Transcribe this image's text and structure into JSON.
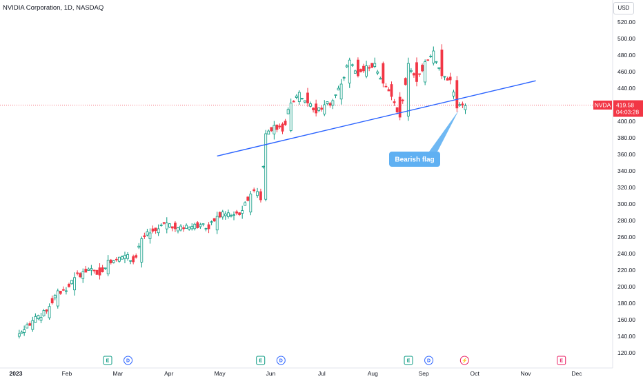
{
  "header": {
    "title": "NVIDIA Corporation, 1D, NASDAQ",
    "currency": "USD"
  },
  "price_label": {
    "symbol": "NVDA",
    "price": "419.58",
    "countdown": "04:03:28",
    "color": "#f23645"
  },
  "annotation": {
    "text": "Bearish flag",
    "color": "#5fb0f2"
  },
  "events": [
    {
      "letter": "E",
      "kind": "earnings",
      "color": "#089981"
    },
    {
      "letter": "D",
      "kind": "dividend",
      "color": "#2962ff"
    },
    {
      "letter": "E",
      "kind": "earnings",
      "color": "#089981"
    },
    {
      "letter": "D",
      "kind": "dividend",
      "color": "#2962ff"
    },
    {
      "letter": "E",
      "kind": "earnings",
      "color": "#089981"
    },
    {
      "letter": "D",
      "kind": "dividend",
      "color": "#2962ff"
    },
    {
      "letter": "⚡",
      "kind": "split",
      "color": "#e91e63"
    },
    {
      "letter": "E",
      "kind": "earnings-future",
      "color": "#e91e63"
    }
  ],
  "colors": {
    "up": "#089981",
    "down": "#f23645",
    "trendline": "#2962ff",
    "grid": "#ffffff"
  },
  "chart_data": {
    "type": "candlestick",
    "title": "NVIDIA Corporation, 1D, NASDAQ",
    "ylim": [
      100,
      525
    ],
    "y_ticks": [
      120,
      140,
      160,
      180,
      200,
      220,
      240,
      260,
      280,
      300,
      320,
      340,
      360,
      380,
      400,
      420,
      440,
      460,
      480,
      500,
      520
    ],
    "x_ticks": [
      "2023",
      "Feb",
      "Mar",
      "Apr",
      "May",
      "Jun",
      "Jul",
      "Aug",
      "Sep",
      "Oct",
      "Nov",
      "Dec"
    ],
    "x_tick_months": [
      0,
      1,
      2,
      3,
      4,
      5,
      6,
      7,
      8,
      9,
      10,
      11
    ],
    "event_months": [
      1.8,
      2.2,
      4.8,
      5.2,
      7.7,
      8.1,
      8.8,
      10.7
    ],
    "last_price": 419.58,
    "trendline": {
      "start": [
        "2023-05-01",
        358
      ],
      "end": [
        "2023-11-07",
        449
      ]
    },
    "annotation_anchor": [
      "2023-09-22",
      413
    ],
    "closes": [
      [
        "2023-01-03",
        143
      ],
      [
        "2023-01-06",
        148
      ],
      [
        "2023-01-11",
        159
      ],
      [
        "2023-01-16",
        163
      ],
      [
        "2023-01-21",
        176
      ],
      [
        "2023-01-26",
        195
      ],
      [
        "2023-01-31",
        195
      ],
      [
        "2023-02-05",
        211
      ],
      [
        "2023-02-10",
        218
      ],
      [
        "2023-02-15",
        222
      ],
      [
        "2023-02-20",
        214
      ],
      [
        "2023-02-25",
        232
      ],
      [
        "2023-03-02",
        233
      ],
      [
        "2023-03-07",
        238
      ],
      [
        "2023-03-12",
        230
      ],
      [
        "2023-03-17",
        258
      ],
      [
        "2023-03-22",
        265
      ],
      [
        "2023-03-27",
        270
      ],
      [
        "2023-04-01",
        277
      ],
      [
        "2023-04-06",
        270
      ],
      [
        "2023-04-11",
        270
      ],
      [
        "2023-04-16",
        273
      ],
      [
        "2023-04-21",
        275
      ],
      [
        "2023-04-26",
        270
      ],
      [
        "2023-05-01",
        285
      ],
      [
        "2023-05-06",
        288
      ],
      [
        "2023-05-11",
        287
      ],
      [
        "2023-05-16",
        292
      ],
      [
        "2023-05-21",
        312
      ],
      [
        "2023-05-25",
        315
      ],
      [
        "2023-05-27",
        305
      ],
      [
        "2023-05-30",
        385
      ],
      [
        "2023-06-04",
        395
      ],
      [
        "2023-06-09",
        388
      ],
      [
        "2023-06-14",
        422
      ],
      [
        "2023-06-19",
        435
      ],
      [
        "2023-06-24",
        422
      ],
      [
        "2023-06-29",
        410
      ],
      [
        "2023-07-04",
        420
      ],
      [
        "2023-07-09",
        425
      ],
      [
        "2023-07-14",
        445
      ],
      [
        "2023-07-19",
        474
      ],
      [
        "2023-07-24",
        455
      ],
      [
        "2023-07-29",
        467
      ],
      [
        "2023-08-03",
        470
      ],
      [
        "2023-08-08",
        446
      ],
      [
        "2023-08-13",
        430
      ],
      [
        "2023-08-18",
        405
      ],
      [
        "2023-08-23",
        470
      ],
      [
        "2023-08-28",
        448
      ],
      [
        "2023-09-02",
        472
      ],
      [
        "2023-09-07",
        485
      ],
      [
        "2023-09-12",
        455
      ],
      [
        "2023-09-17",
        450
      ],
      [
        "2023-09-21",
        416
      ],
      [
        "2023-09-26",
        419
      ]
    ]
  }
}
